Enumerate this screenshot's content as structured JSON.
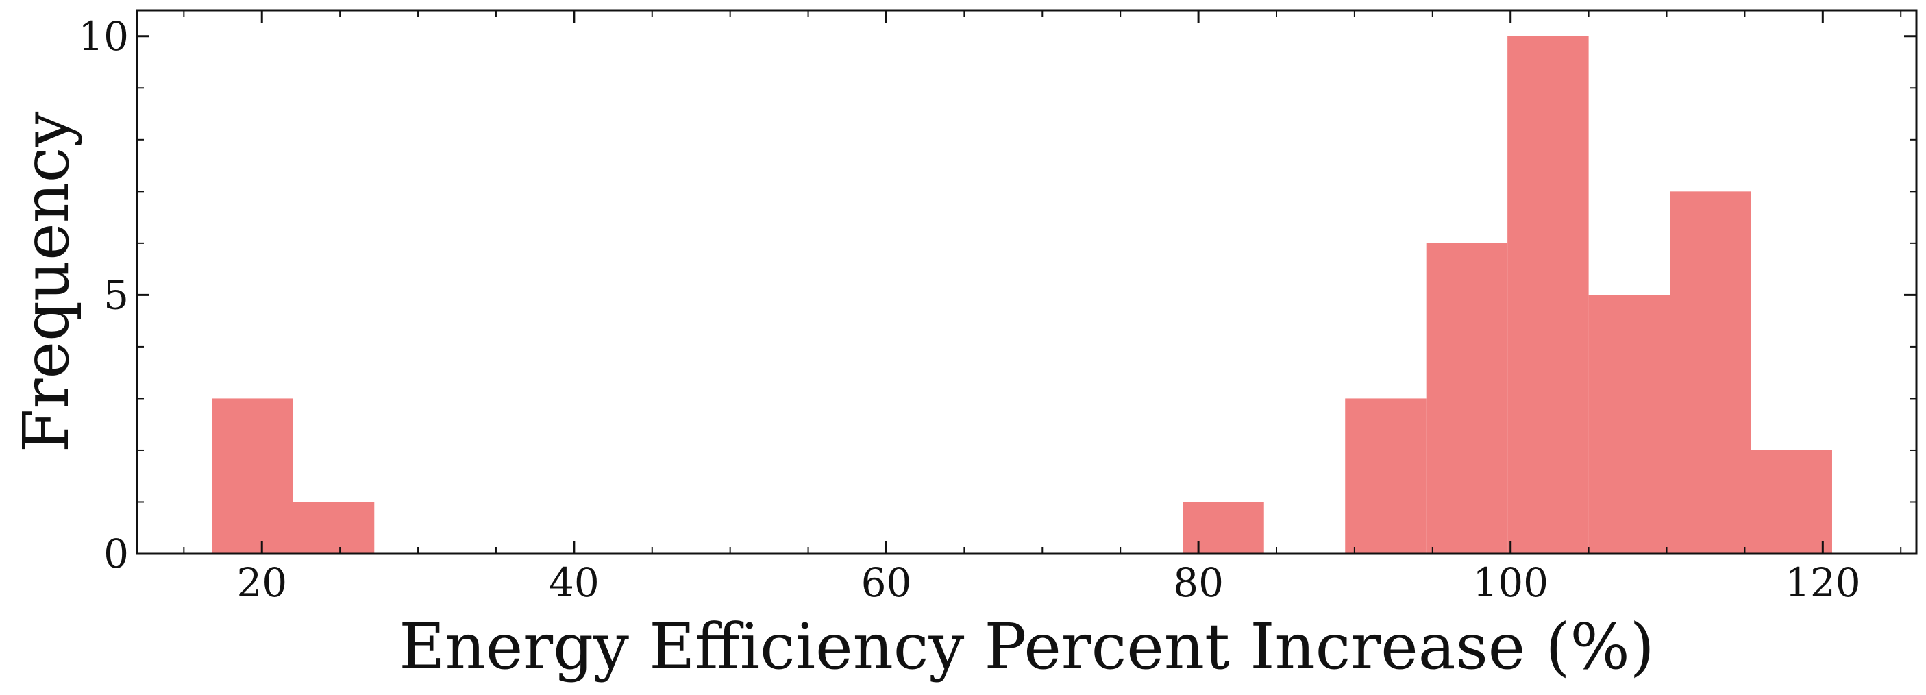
{
  "chart_data": {
    "type": "bar",
    "subtype": "histogram",
    "xlabel": "Energy Efficiency Percent Increase (%)",
    "ylabel": "Frequency",
    "xlim": [
      12,
      126
    ],
    "ylim": [
      0,
      10.5
    ],
    "xticks": [
      20,
      40,
      60,
      80,
      100,
      120
    ],
    "yticks": [
      0,
      5,
      10
    ],
    "x_minor_step": 5,
    "y_minor_step": 1,
    "bar_color": "#f08080",
    "bins": [
      {
        "start": 16.8,
        "end": 22.0,
        "count": 3
      },
      {
        "start": 22.0,
        "end": 27.2,
        "count": 1
      },
      {
        "start": 79.0,
        "end": 84.2,
        "count": 1
      },
      {
        "start": 89.4,
        "end": 94.6,
        "count": 3
      },
      {
        "start": 94.6,
        "end": 99.8,
        "count": 6
      },
      {
        "start": 99.8,
        "end": 105.0,
        "count": 10
      },
      {
        "start": 105.0,
        "end": 110.2,
        "count": 5
      },
      {
        "start": 110.2,
        "end": 115.4,
        "count": 7
      },
      {
        "start": 115.4,
        "end": 120.6,
        "count": 2
      }
    ]
  }
}
